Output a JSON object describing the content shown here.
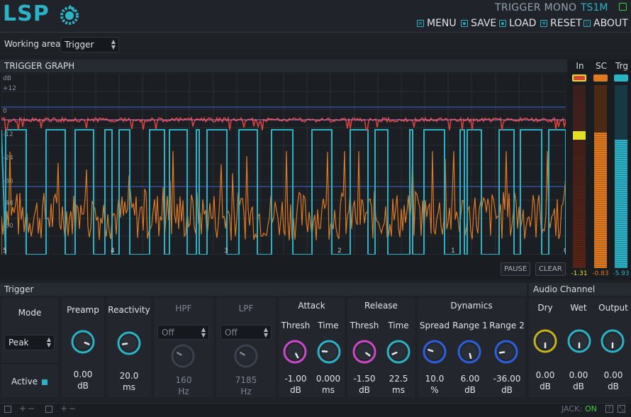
{
  "header": {
    "logo": "LSP",
    "plugin_name": "TRIGGER MONO",
    "plugin_id": "TS1M",
    "menu": [
      {
        "label": "MENU",
        "icon": "menu-icon"
      },
      {
        "label": "SAVE",
        "icon": "save-icon"
      },
      {
        "label": "LOAD",
        "icon": "load-icon"
      },
      {
        "label": "RESET",
        "icon": "reset-icon"
      },
      {
        "label": "ABOUT",
        "icon": "about-icon"
      }
    ]
  },
  "workarea": {
    "label": "Working area",
    "value": "Trigger"
  },
  "graph": {
    "title": "TRIGGER GRAPH",
    "unit": "dB",
    "y_labels": [
      "+12",
      "0",
      "-12",
      "-24",
      "-36",
      "-48",
      "-60"
    ],
    "x_labels": [
      "5",
      "4",
      "3",
      "2",
      "1",
      "0"
    ],
    "pause": "PAUSE",
    "clear": "CLEAR",
    "colors": {
      "input": "#e0433a",
      "trigger": "#2ab3c6",
      "sidechain": "#e07a1f",
      "threshold": "#3b69d8"
    }
  },
  "meters": [
    {
      "label": "In",
      "value": "-1.31",
      "color": "#e0e020"
    },
    {
      "label": "SC",
      "value": "-0.83",
      "color": "#e07a1f"
    },
    {
      "label": "Trg",
      "value": "-5.93",
      "color": "#2ab3c6"
    }
  ],
  "trigger": {
    "title": "Trigger",
    "mode": {
      "label": "Mode",
      "value": "Peak"
    },
    "active": "Active",
    "preamp": {
      "label": "Preamp",
      "value": "0.00",
      "unit": "dB"
    },
    "reactivity": {
      "label": "Reactivity",
      "value": "20.0",
      "unit": "ms"
    },
    "hpf": {
      "label": "HPF",
      "mode": "Off",
      "value": "160",
      "unit": "Hz"
    },
    "lpf": {
      "label": "LPF",
      "mode": "Off",
      "value": "7185",
      "unit": "Hz"
    },
    "attack": {
      "label": "Attack",
      "thresh_label": "Thresh",
      "time_label": "Time",
      "thresh": "-1.00",
      "thresh_unit": "dB",
      "time": "0.000",
      "time_unit": "ms"
    },
    "release": {
      "label": "Release",
      "thresh_label": "Thresh",
      "time_label": "Time",
      "thresh": "-1.50",
      "thresh_unit": "dB",
      "time": "22.5",
      "time_unit": "ms"
    },
    "dynamics": {
      "label": "Dynamics",
      "spread_label": "Spread",
      "range1_label": "Range 1",
      "range2_label": "Range 2",
      "spread": "10.0",
      "spread_unit": "%",
      "range1": "6.00",
      "range1_unit": "dB",
      "range2": "-36.00",
      "range2_unit": "dB"
    }
  },
  "audio": {
    "title": "Audio Channel",
    "dry": {
      "label": "Dry",
      "value": "0.00",
      "unit": "dB"
    },
    "wet": {
      "label": "Wet",
      "value": "0.00",
      "unit": "dB"
    },
    "output": {
      "label": "Output",
      "value": "0.00",
      "unit": "dB"
    }
  },
  "status": {
    "jack_label": "JACK:",
    "jack_value": "ON",
    "plus": "+",
    "minus": "−"
  }
}
